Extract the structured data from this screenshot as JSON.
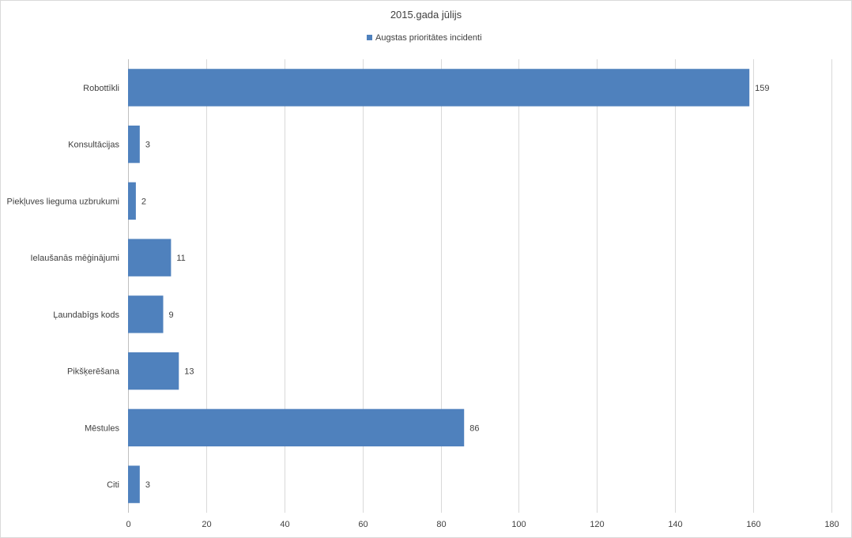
{
  "chart_data": {
    "type": "bar",
    "orientation": "horizontal",
    "title": "2015.gada jūlijs",
    "categories": [
      "Robottīkli",
      "Konsultācijas",
      "Piekļuves lieguma uzbrukumi",
      "Ielaušanās mēģinājumi",
      "Ļaundabīgs kods",
      "Pikšķerēšana",
      "Mēstules",
      "Citi"
    ],
    "series": [
      {
        "name": "Augstas prioritātes incidenti",
        "values": [
          159,
          3,
          2,
          11,
          9,
          13,
          86,
          3
        ],
        "color": "#4f81bd"
      }
    ],
    "xlim": [
      0,
      180
    ],
    "xticks": [
      0,
      20,
      40,
      60,
      80,
      100,
      120,
      140,
      160,
      180
    ],
    "grid": true,
    "legend": "top-center",
    "xlabel": "",
    "ylabel": ""
  }
}
